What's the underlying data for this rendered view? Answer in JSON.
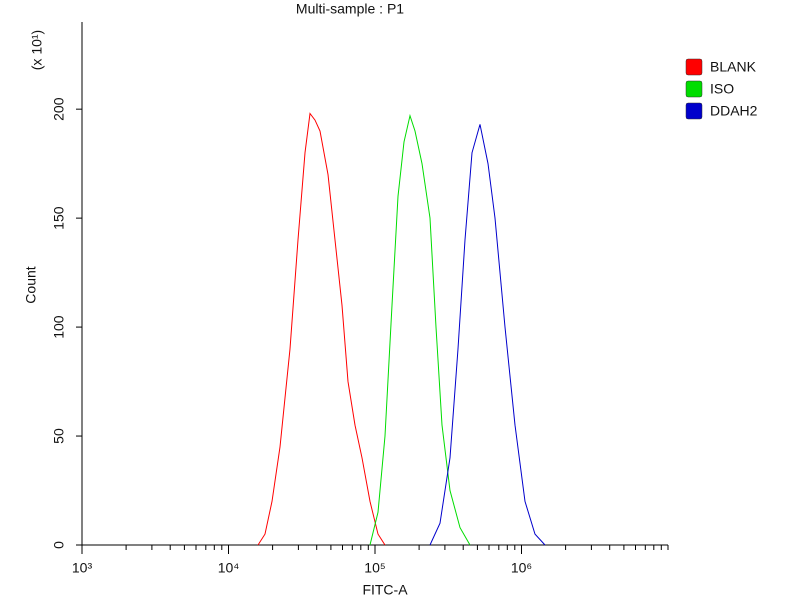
{
  "chart_data": {
    "type": "line",
    "title": "Multi-sample : P1",
    "xlabel": "FITC-A",
    "ylabel": "Count",
    "y_multiplier": "(x 10¹)",
    "xscale": "log",
    "xlim": [
      1000,
      10000000
    ],
    "xticks": [
      {
        "value": 1000,
        "label": "10³"
      },
      {
        "value": 10000,
        "label": "10⁴"
      },
      {
        "value": 100000,
        "label": "10⁵"
      },
      {
        "value": 1000000,
        "label": "10⁶"
      }
    ],
    "xminorticks": [
      2000,
      3000,
      4000,
      5000,
      6000,
      7000,
      8000,
      9000,
      20000,
      30000,
      40000,
      50000,
      60000,
      70000,
      80000,
      90000,
      200000,
      300000,
      400000,
      500000,
      600000,
      700000,
      800000,
      900000,
      2000000,
      3000000,
      4000000,
      5000000,
      6000000,
      7000000,
      8000000,
      9000000,
      10000000
    ],
    "ylim": [
      0,
      240
    ],
    "yticks": [
      0,
      50,
      100,
      150,
      200
    ],
    "legend": "right",
    "series": [
      {
        "name": "BLANK",
        "color": "#ff0000",
        "x": [
          15900,
          17750,
          19810,
          22460,
          26290,
          29810,
          33290,
          36010,
          38940,
          42130,
          47780,
          53330,
          59530,
          65420,
          73030,
          81520,
          92450,
          104800,
          117000
        ],
        "values": [
          0,
          5,
          20,
          45,
          90,
          140,
          180,
          198,
          195,
          190,
          170,
          140,
          110,
          75,
          55,
          40,
          20,
          5,
          0
        ]
      },
      {
        "name": "ISO",
        "color": "#00dd00",
        "x": [
          92450,
          104800,
          117000,
          130600,
          143500,
          157800,
          173400,
          187500,
          209300,
          237400,
          261000,
          286700,
          325100,
          380400,
          445100
        ],
        "values": [
          0,
          15,
          50,
          110,
          160,
          185,
          197,
          190,
          175,
          150,
          100,
          55,
          25,
          8,
          0
        ]
      },
      {
        "name": "DDAH2",
        "color": "#0000cc",
        "x": [
          237400,
          277800,
          325100,
          368700,
          411600,
          459300,
          520800,
          590600,
          659400,
          771700,
          902900,
          1057000,
          1237000,
          1447000
        ],
        "values": [
          0,
          10,
          40,
          90,
          140,
          180,
          193,
          175,
          150,
          100,
          55,
          20,
          5,
          0
        ]
      }
    ]
  }
}
